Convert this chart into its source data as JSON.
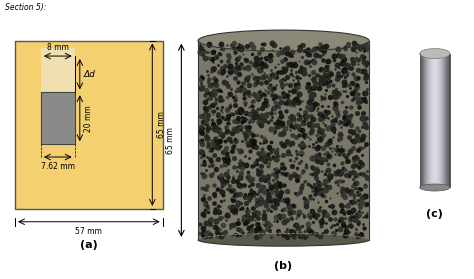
{
  "fig_width": 4.74,
  "fig_height": 2.79,
  "dpi": 100,
  "bg_color": "#ffffff",
  "header_text": "Section 5):",
  "label_a": "(a)",
  "label_b": "(b)",
  "label_c": "(c)",
  "schematic_bg": "#f5d070",
  "dim_8mm": "8 mm",
  "dim_delta": "Δd",
  "dim_20mm": "20 mm",
  "dim_65mm": "65 mm",
  "dim_762mm": "7.62 mm",
  "dim_57mm": "57 mm",
  "annotation_fontsize": 5.5,
  "label_fontsize": 8
}
